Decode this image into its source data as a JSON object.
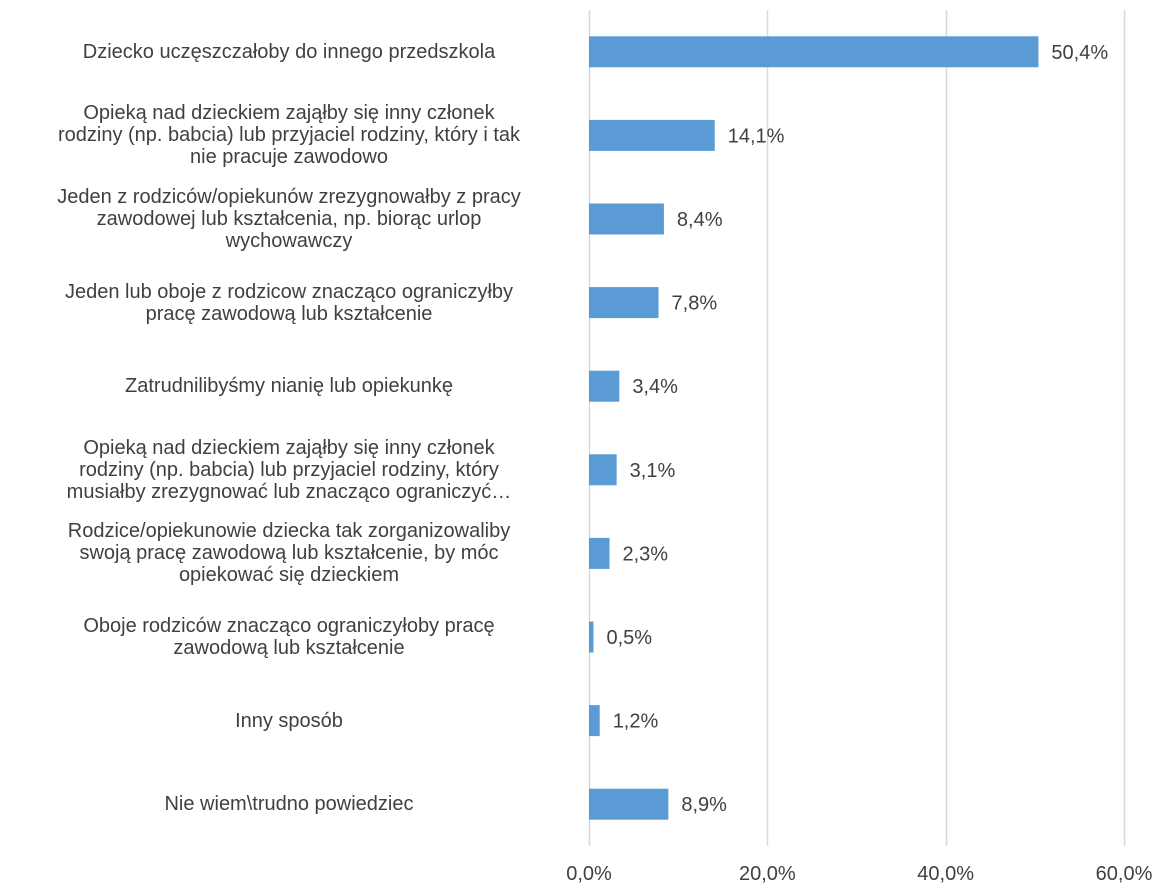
{
  "chart_data": {
    "type": "bar",
    "orientation": "horizontal",
    "categories": [
      "Dziecko uczęszczałoby do innego przedszkola",
      "Opieką nad dzieckiem zająłby się inny członek rodziny (np. babcia) lub przyjaciel rodziny, który i tak nie pracuje zawodowo",
      "Jeden z rodziców/opiekunów zrezygnowałby z pracy zawodowej lub kształcenia, np. biorąc urlop wychowawczy",
      "Jeden lub oboje z rodzicow znacząco ograniczyłby pracę zawodową lub kształcenie",
      "Zatrudnilibyśmy nianię lub opiekunkę",
      "Opieką nad dzieckiem zająłby się inny członek rodziny (np. babcia) lub przyjaciel rodziny, który musiałby zrezygnować lub znacząco ograniczyć…",
      "Rodzice/opiekunowie dziecka tak zorganizowaliby swoją pracę zawodową lub kształcenie, by móc opiekować się dzieckiem",
      "Oboje rodziców znacząco ograniczyłoby pracę zawodową lub kształcenie",
      "Inny sposób",
      "Nie wiem\\trudno powiedziec"
    ],
    "category_lines": [
      [
        "Dziecko uczęszczałoby do innego przedszkola"
      ],
      [
        "Opieką nad dzieckiem zająłby się inny członek",
        "rodziny (np. babcia) lub przyjaciel rodziny, który i tak",
        "nie pracuje zawodowo"
      ],
      [
        "Jeden z rodziców/opiekunów zrezygnowałby z pracy",
        "zawodowej lub kształcenia, np. biorąc urlop",
        "wychowawczy"
      ],
      [
        "Jeden lub oboje z rodzicow znacząco ograniczyłby",
        "pracę zawodową lub kształcenie"
      ],
      [
        "Zatrudnilibyśmy nianię lub opiekunkę"
      ],
      [
        "Opieką nad dzieckiem zająłby się inny członek",
        "rodziny (np. babcia) lub przyjaciel rodziny, który",
        "musiałby zrezygnować lub znacząco ograniczyć…"
      ],
      [
        "Rodzice/opiekunowie dziecka tak zorganizowaliby",
        "swoją pracę zawodową lub kształcenie, by móc",
        "opiekować się dzieckiem"
      ],
      [
        "Oboje rodziców znacząco ograniczyłoby pracę",
        "zawodową lub kształcenie"
      ],
      [
        "Inny sposób"
      ],
      [
        "Nie wiem\\trudno powiedziec"
      ]
    ],
    "values": [
      50.4,
      14.1,
      8.4,
      7.8,
      3.4,
      3.1,
      2.3,
      0.5,
      1.2,
      8.9
    ],
    "data_labels": [
      "50,4%",
      "14,1%",
      "8,4%",
      "7,8%",
      "3,4%",
      "3,1%",
      "2,3%",
      "0,5%",
      "1,2%",
      "8,9%"
    ],
    "xlim": [
      0,
      60
    ],
    "xticks": [
      0,
      20,
      40,
      60
    ],
    "xtick_labels": [
      "0,0%",
      "20,0%",
      "40,0%",
      "60,0%"
    ],
    "grid": true,
    "legend": "none",
    "bar_color": "#5b9bd5",
    "grid_color": "#d9d9d9",
    "text_color": "#404040"
  }
}
